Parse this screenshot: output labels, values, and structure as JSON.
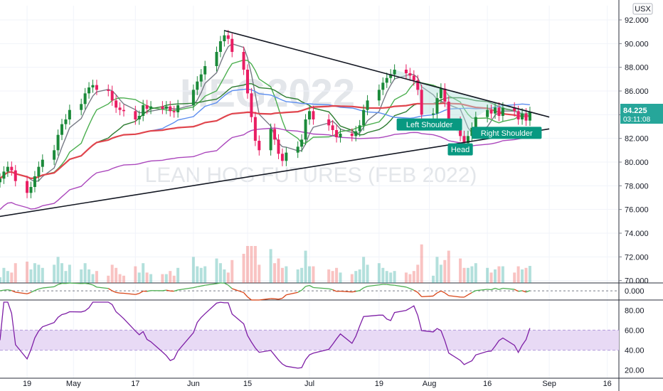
{
  "chart_data": {
    "type": "line",
    "symbol_watermark": "HEG2022",
    "title": "LEAN HOG FUTURES (FEB 2022)",
    "currency_label": "USX",
    "last_price": "84.225",
    "countdown": "03:11:08",
    "price_axis": {
      "ylim": [
        69.8,
        93.2
      ],
      "ticks": [
        "92.000",
        "90.000",
        "88.000",
        "86.000",
        "84.000",
        "82.000",
        "80.000",
        "78.000",
        "76.000",
        "74.000",
        "72.000",
        "70.000"
      ]
    },
    "oscillator_axis": {
      "ylim": [
        -1.4,
        1.2
      ],
      "ticks": [
        "0.000"
      ]
    },
    "rsi_axis": {
      "ylim": [
        12,
        88
      ],
      "ticks": [
        "80.00",
        "60.00",
        "40.00",
        "20.00"
      ],
      "band": [
        40,
        60
      ]
    },
    "x_axis": {
      "start": "2021-04-12",
      "end": "2021-09-19",
      "ticks": [
        {
          "date": "2021-04-19",
          "label": "19"
        },
        {
          "date": "2021-05-01",
          "label": "May"
        },
        {
          "date": "2021-05-17",
          "label": "17"
        },
        {
          "date": "2021-06-01",
          "label": "Jun"
        },
        {
          "date": "2021-06-15",
          "label": "15"
        },
        {
          "date": "2021-07-01",
          "label": "Jul"
        },
        {
          "date": "2021-07-19",
          "label": "19"
        },
        {
          "date": "2021-08-01",
          "label": "Aug"
        },
        {
          "date": "2021-08-16",
          "label": "16"
        },
        {
          "date": "2021-09-01",
          "label": "Sep"
        },
        {
          "date": "2021-09-16",
          "label": "16"
        }
      ]
    },
    "price_series": [
      {
        "date": "2021-04-12",
        "close": 78.6
      },
      {
        "date": "2021-04-13",
        "close": 79.2
      },
      {
        "date": "2021-04-14",
        "close": 79.6
      },
      {
        "date": "2021-04-15",
        "close": 79.3
      },
      {
        "date": "2021-04-16",
        "close": 78.4
      },
      {
        "date": "2021-04-19",
        "close": 77.4
      },
      {
        "date": "2021-04-20",
        "close": 77.9
      },
      {
        "date": "2021-04-21",
        "close": 78.8
      },
      {
        "date": "2021-04-22",
        "close": 79.6
      },
      {
        "date": "2021-04-23",
        "close": 80.2
      },
      {
        "date": "2021-04-26",
        "close": 81.0
      },
      {
        "date": "2021-04-27",
        "close": 82.3
      },
      {
        "date": "2021-04-28",
        "close": 83.2
      },
      {
        "date": "2021-04-29",
        "close": 83.6
      },
      {
        "date": "2021-04-30",
        "close": 84.4
      },
      {
        "date": "2021-05-03",
        "close": 84.9
      },
      {
        "date": "2021-05-04",
        "close": 85.8
      },
      {
        "date": "2021-05-05",
        "close": 86.3
      },
      {
        "date": "2021-05-06",
        "close": 86.5
      },
      {
        "date": "2021-05-07",
        "close": 86.1
      },
      {
        "date": "2021-05-10",
        "close": 86.0
      },
      {
        "date": "2021-05-11",
        "close": 85.2
      },
      {
        "date": "2021-05-12",
        "close": 84.6
      },
      {
        "date": "2021-05-13",
        "close": 84.4
      },
      {
        "date": "2021-05-14",
        "close": 84.3
      },
      {
        "date": "2021-05-17",
        "close": 83.6
      },
      {
        "date": "2021-05-18",
        "close": 83.9
      },
      {
        "date": "2021-05-19",
        "close": 84.8
      },
      {
        "date": "2021-05-20",
        "close": 84.5
      },
      {
        "date": "2021-05-21",
        "close": 84.7
      },
      {
        "date": "2021-05-24",
        "close": 84.5
      },
      {
        "date": "2021-05-25",
        "close": 84.7
      },
      {
        "date": "2021-05-26",
        "close": 84.3
      },
      {
        "date": "2021-05-27",
        "close": 84.2
      },
      {
        "date": "2021-05-28",
        "close": 84.8
      },
      {
        "date": "2021-06-01",
        "close": 86.1
      },
      {
        "date": "2021-06-02",
        "close": 86.8
      },
      {
        "date": "2021-06-03",
        "close": 87.4
      },
      {
        "date": "2021-06-04",
        "close": 88.1
      },
      {
        "date": "2021-06-07",
        "close": 89.3
      },
      {
        "date": "2021-06-08",
        "close": 90.2
      },
      {
        "date": "2021-06-09",
        "close": 90.7
      },
      {
        "date": "2021-06-10",
        "close": 90.4
      },
      {
        "date": "2021-06-11",
        "close": 89.3
      },
      {
        "date": "2021-06-14",
        "close": 87.8
      },
      {
        "date": "2021-06-15",
        "close": 85.8
      },
      {
        "date": "2021-06-16",
        "close": 83.8
      },
      {
        "date": "2021-06-17",
        "close": 81.8
      },
      {
        "date": "2021-06-18",
        "close": 81.0
      },
      {
        "date": "2021-06-21",
        "close": 82.8
      },
      {
        "date": "2021-06-22",
        "close": 81.9
      },
      {
        "date": "2021-06-23",
        "close": 80.7
      },
      {
        "date": "2021-06-24",
        "close": 80.1
      },
      {
        "date": "2021-06-25",
        "close": 80.8
      },
      {
        "date": "2021-06-28",
        "close": 81.3
      },
      {
        "date": "2021-06-29",
        "close": 81.9
      },
      {
        "date": "2021-06-30",
        "close": 83.6
      },
      {
        "date": "2021-07-01",
        "close": 84.3
      },
      {
        "date": "2021-07-02",
        "close": 83.6
      },
      {
        "date": "2021-07-06",
        "close": 83.1
      },
      {
        "date": "2021-07-07",
        "close": 82.7
      },
      {
        "date": "2021-07-08",
        "close": 82.1
      },
      {
        "date": "2021-07-09",
        "close": 82.4
      },
      {
        "date": "2021-07-12",
        "close": 82.2
      },
      {
        "date": "2021-07-13",
        "close": 82.6
      },
      {
        "date": "2021-07-14",
        "close": 83.1
      },
      {
        "date": "2021-07-15",
        "close": 84.4
      },
      {
        "date": "2021-07-16",
        "close": 85.2
      },
      {
        "date": "2021-07-19",
        "close": 86.1
      },
      {
        "date": "2021-07-20",
        "close": 86.7
      },
      {
        "date": "2021-07-21",
        "close": 87.1
      },
      {
        "date": "2021-07-22",
        "close": 87.4
      },
      {
        "date": "2021-07-23",
        "close": 87.8
      },
      {
        "date": "2021-07-26",
        "close": 87.5
      },
      {
        "date": "2021-07-27",
        "close": 87.3
      },
      {
        "date": "2021-07-28",
        "close": 86.9
      },
      {
        "date": "2021-07-29",
        "close": 86.1
      },
      {
        "date": "2021-07-30",
        "close": 84.0
      },
      {
        "date": "2021-08-02",
        "close": 84.1
      },
      {
        "date": "2021-08-03",
        "close": 85.4
      },
      {
        "date": "2021-08-04",
        "close": 86.2
      },
      {
        "date": "2021-08-05",
        "close": 85.1
      },
      {
        "date": "2021-08-06",
        "close": 83.4
      },
      {
        "date": "2021-08-09",
        "close": 82.2
      },
      {
        "date": "2021-08-10",
        "close": 81.6
      },
      {
        "date": "2021-08-11",
        "close": 82.2
      },
      {
        "date": "2021-08-12",
        "close": 82.9
      },
      {
        "date": "2021-08-13",
        "close": 83.8
      },
      {
        "date": "2021-08-16",
        "close": 84.4
      },
      {
        "date": "2021-08-17",
        "close": 84.1
      },
      {
        "date": "2021-08-18",
        "close": 84.6
      },
      {
        "date": "2021-08-19",
        "close": 83.9
      },
      {
        "date": "2021-08-20",
        "close": 84.6
      },
      {
        "date": "2021-08-23",
        "close": 84.3
      },
      {
        "date": "2021-08-24",
        "close": 83.6
      },
      {
        "date": "2021-08-25",
        "close": 84.1
      },
      {
        "date": "2021-08-26",
        "close": 83.5
      },
      {
        "date": "2021-08-27",
        "close": 84.225
      }
    ],
    "moving_averages": [
      {
        "period": 5,
        "color": "#787b86"
      },
      {
        "period": 10,
        "color": "#4caf50"
      },
      {
        "period": 20,
        "color": "#2e7d32"
      },
      {
        "period": 30,
        "color": "#5b8def"
      },
      {
        "period": 50,
        "color": "#e0454d"
      },
      {
        "period": 150,
        "color": "#ab47bc"
      }
    ],
    "trendlines": [
      {
        "label": "upper",
        "points": [
          {
            "date": "2021-06-09",
            "value": 91.1
          },
          {
            "date": "2021-09-01",
            "value": 83.8
          }
        ]
      },
      {
        "label": "lower",
        "points": [
          {
            "date": "2021-04-04",
            "value": 75.0
          },
          {
            "date": "2021-09-01",
            "value": 82.8
          }
        ]
      }
    ],
    "annotations": [
      {
        "text": "Left Shoulder",
        "date": "2021-08-01",
        "value": 83.2
      },
      {
        "text": "Head",
        "date": "2021-08-09",
        "value": 81.1
      },
      {
        "text": "Right Shoulder",
        "date": "2021-08-21",
        "value": 82.5
      }
    ],
    "colors": {
      "up": "#26a69a",
      "down": "#ef5350",
      "candle_up": "#1b8a3a",
      "candle_down": "#e91e63",
      "trendline": "#131722",
      "label_bg": "#089981",
      "rsi": "#7e1fa6",
      "rsi_band": "#e8daf5",
      "osc_pos": "#4caf50",
      "osc_neg": "#d84315",
      "price_badge": "#26a69a"
    }
  }
}
